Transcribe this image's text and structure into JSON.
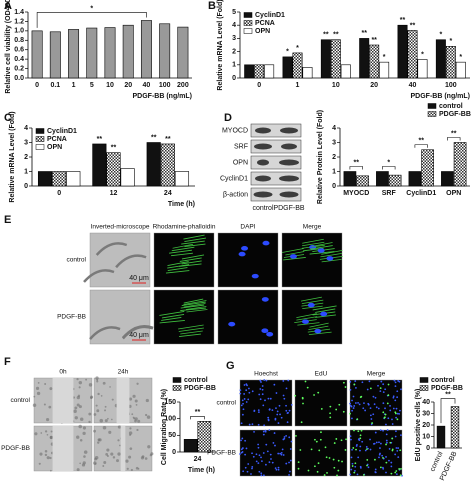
{
  "chart_data": [
    {
      "panel": "A",
      "type": "bar",
      "ylabel": "Relative cell viability (OD490)",
      "xlabel": "PDGF-BB (ng/mL)",
      "categories": [
        "0",
        "0.1",
        "1",
        "5",
        "10",
        "20",
        "40",
        "100",
        "200"
      ],
      "values": [
        1.0,
        0.98,
        1.03,
        1.06,
        1.07,
        1.12,
        1.22,
        1.15,
        1.08
      ],
      "color": "#999999",
      "ylim": [
        0,
        1.4
      ],
      "yticks": [
        {
          "value": 0,
          "label": "0.0"
        },
        0.2,
        0.4,
        0.6,
        0.8,
        {
          "value": 1,
          "label": "1.0"
        },
        1.2,
        1.4
      ],
      "annotation": "*"
    },
    {
      "panel": "B",
      "type": "bar",
      "ylabel": "Relative mRNA Level (Fold)",
      "xlabel": "PDGF-BB (ng/mL)",
      "categories": [
        "0",
        "1",
        "10",
        "20",
        "40",
        "100"
      ],
      "legend": "upper left",
      "series": [
        {
          "name": "CyclinD1",
          "color": "#111111",
          "values": [
            1,
            1.6,
            2.9,
            3.0,
            4.0,
            2.9
          ],
          "significance": [
            null,
            "*",
            "**",
            "**",
            "**",
            "*"
          ]
        },
        {
          "name": "PCNA",
          "color": "#333333",
          "pattern": "checker",
          "values": [
            1,
            1.9,
            2.9,
            2.5,
            3.6,
            2.4
          ],
          "significance": [
            null,
            "*",
            "**",
            "**",
            "**",
            "*"
          ]
        },
        {
          "name": "OPN",
          "color": "#ffffff",
          "values": [
            1,
            0.8,
            1.0,
            1.2,
            1.4,
            1.2
          ],
          "significance": [
            null,
            null,
            null,
            "*",
            "*",
            "*"
          ]
        }
      ],
      "ylim": [
        0,
        5
      ],
      "yticks": [
        0,
        1,
        2,
        3,
        4,
        5
      ]
    },
    {
      "panel": "C",
      "type": "bar",
      "ylabel": "Relative mRNA Level (Fold)",
      "xlabel": "Time (h)",
      "categories": [
        "0",
        "12",
        "24"
      ],
      "legend": "upper left",
      "series": [
        {
          "name": "CyclinD1",
          "color": "#111111",
          "values": [
            1,
            2.9,
            3.0
          ],
          "significance": [
            null,
            "**",
            "**"
          ]
        },
        {
          "name": "PCNA",
          "color": "#333333",
          "pattern": "checker",
          "values": [
            1,
            2.3,
            2.9
          ],
          "significance": [
            null,
            "**",
            "**"
          ]
        },
        {
          "name": "OPN",
          "color": "#ffffff",
          "values": [
            1,
            1.2,
            1.0
          ]
        }
      ],
      "ylim": [
        0,
        4
      ],
      "yticks": [
        0,
        1,
        2,
        3,
        4
      ]
    },
    {
      "type": "bar",
      "ylabel": "Relative Protein Level (Fold)",
      "categories": [
        "MYOCD",
        "SRF",
        "CyclinD1",
        "OPN"
      ],
      "legend": "upper right",
      "series": [
        {
          "name": "control",
          "color": "#111111",
          "values": [
            1,
            1,
            1,
            1
          ]
        },
        {
          "name": "PDGF-BB",
          "color": "#333333",
          "pattern": "checker",
          "values": [
            0.7,
            0.75,
            2.5,
            3.0
          ]
        }
      ],
      "significance": [
        "**",
        "*",
        "**",
        "**"
      ],
      "ylim": [
        0,
        4
      ],
      "yticks": [
        0,
        1,
        2,
        3,
        4
      ]
    },
    {
      "type": "bar",
      "ylabel": "Cell Migration Rate (%)",
      "xlabel": "Time (h)",
      "categories": [
        "24"
      ],
      "legend": "upper right",
      "series": [
        {
          "name": "control",
          "color": "#111111",
          "values": [
            38
          ]
        },
        {
          "name": "PDGF-BB",
          "color": "#333333",
          "pattern": "checker",
          "values": [
            92
          ]
        }
      ],
      "significance": [
        "**"
      ],
      "ylim": [
        0,
        150
      ],
      "yticks": [
        0,
        50,
        100,
        150
      ]
    },
    {
      "type": "bar",
      "ylabel": "EdU positive cells (%)",
      "categories": [
        "control",
        "PDGF-BB"
      ],
      "legend": "upper right",
      "values": [
        19,
        36
      ],
      "colors": [
        "#111111",
        "#333333"
      ],
      "patterns": [
        null,
        "checker"
      ],
      "annotation": "**",
      "ylim": [
        0,
        40
      ],
      "yticks": [
        0,
        10,
        20,
        30,
        40
      ]
    }
  ],
  "blot": {
    "panel": "D",
    "proteins": [
      "MYOCD",
      "SRF",
      "OPN",
      "CyclinD1",
      "β-action"
    ],
    "groups": [
      "control",
      "PDGF-BB"
    ]
  },
  "figures": [
    {
      "panel": "E",
      "columns": [
        "Inverted-microscope",
        "Rhodamine-phalloidin",
        "DAPI",
        "Merge"
      ],
      "rows": [
        "control",
        "PDGF-BB"
      ],
      "scale": "40 μm"
    },
    {
      "panel": "F",
      "columns": [
        "0h",
        "24h"
      ],
      "rows": [
        "control",
        "PDGF-BB"
      ]
    },
    {
      "panel": "G",
      "columns": [
        "Hoechst",
        "EdU",
        "Merge"
      ],
      "rows": [
        "control",
        "PDGF-BB"
      ]
    }
  ]
}
